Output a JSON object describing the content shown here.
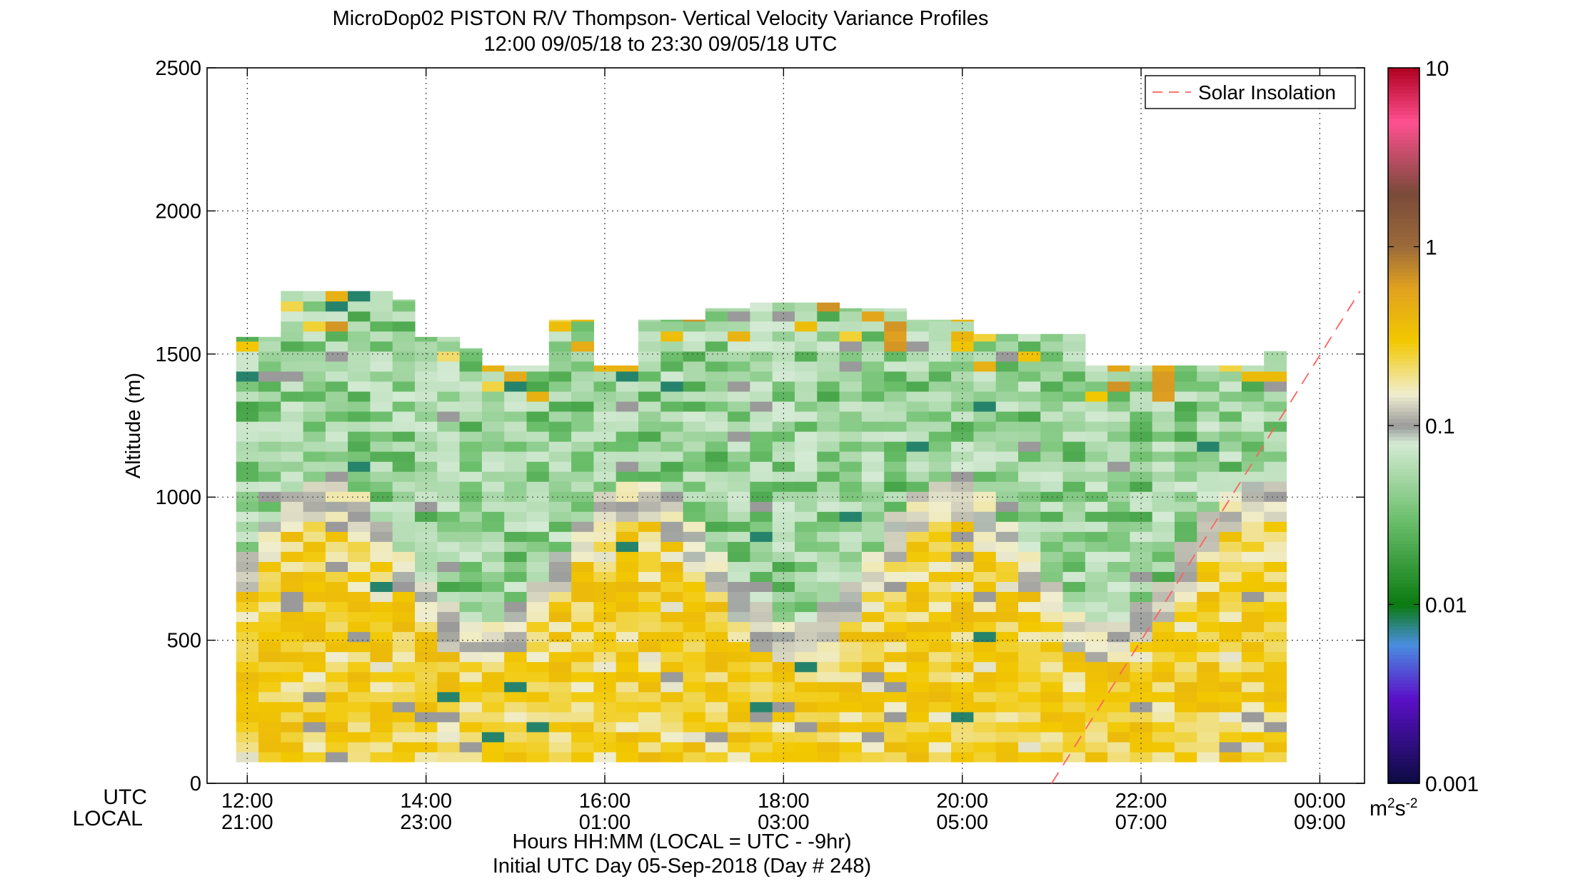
{
  "figure": {
    "title_line1": "MicroDop02 PISTON R/V Thompson- Vertical Velocity Variance Profiles",
    "title_line2": "12:00 09/05/18 to 23:30 09/05/18  UTC",
    "xlabel_line1": "Hours HH:MM  (LOCAL = UTC - -9hr)",
    "xlabel_line2": "Initial UTC Day 05-Sep-2018 (Day # 248)",
    "row_label_utc": "UTC",
    "row_label_local": "LOCAL",
    "colorbar_unit": "m²s⁻²",
    "colorbar_unit_base": "m",
    "colorbar_unit_exp1": "2",
    "colorbar_unit_mid": "s",
    "colorbar_unit_exp2": "-2"
  },
  "chart_data": {
    "type": "heatmap",
    "title": "MicroDop02 PISTON R/V Thompson- Vertical Velocity Variance Profiles",
    "subtitle": "12:00 09/05/18 to 23:30 09/05/18  UTC",
    "ylabel": "Altitude (m)",
    "xlabel": "Hours HH:MM  (LOCAL = UTC - -9hr)",
    "x_hours_range": [
      11.55,
      24.5
    ],
    "ylim": [
      0,
      2500
    ],
    "y_ticks": [
      0,
      500,
      1000,
      1500,
      2000,
      2500
    ],
    "x_tick_hours": [
      12,
      14,
      16,
      18,
      20,
      22,
      24
    ],
    "x_ticks_utc": [
      "12:00",
      "14:00",
      "16:00",
      "18:00",
      "20:00",
      "22:00",
      "00:00"
    ],
    "x_ticks_local": [
      "21:00",
      "23:00",
      "01:00",
      "03:00",
      "05:00",
      "07:00",
      "09:00"
    ],
    "grid": true,
    "colorbar": {
      "scale": "log",
      "range": [
        0.001,
        10
      ],
      "tick_values": [
        0.001,
        0.01,
        0.1,
        1,
        10
      ],
      "tick_labels": [
        "0.001",
        "0.01",
        "0.1",
        "1",
        "10"
      ],
      "colors": {
        "0.001": "#0b0b40",
        "0.003": "#5a10c8",
        "0.006": "#4a8ee0",
        "0.01": "#0a7a10",
        "0.03": "#6cbf6c",
        "0.08": "#d4ead4",
        "0.1": "#9a9a9a",
        "0.15": "#f0eed0",
        "0.3": "#f2c800",
        "0.6": "#e0a020",
        "1": "#9b6b3a",
        "2": "#7a4a3a",
        "5": "#ff5090",
        "10": "#b00020"
      }
    },
    "legend": {
      "position": "top-right",
      "entries": [
        {
          "name": "Solar Insolation",
          "style": "dashed",
          "color": "#ff6060"
        }
      ]
    },
    "series": [
      {
        "name": "Solar Insolation",
        "type": "line",
        "x_hours": [
          21.0,
          24.45
        ],
        "y": [
          0,
          1720
        ]
      }
    ],
    "time_bin_hours": 0.25,
    "altitude_bin_m": 35,
    "profiles": {
      "time_start_hour": 12.0,
      "time_end_hour": 23.5,
      "cloud_base_top_m": [
        [
          75,
          1560
        ],
        [
          75,
          1560
        ],
        [
          75,
          1720
        ],
        [
          75,
          1720
        ],
        [
          75,
          1720
        ],
        [
          75,
          1720
        ],
        [
          75,
          1720
        ],
        [
          75,
          1690
        ],
        [
          75,
          1560
        ],
        [
          75,
          1560
        ],
        [
          75,
          1520
        ],
        [
          75,
          1460
        ],
        [
          75,
          1460
        ],
        [
          75,
          1460
        ],
        [
          75,
          1620
        ],
        [
          75,
          1620
        ],
        [
          75,
          1460
        ],
        [
          75,
          1460
        ],
        [
          75,
          1620
        ],
        [
          75,
          1620
        ],
        [
          75,
          1620
        ],
        [
          75,
          1660
        ],
        [
          75,
          1660
        ],
        [
          75,
          1680
        ],
        [
          75,
          1680
        ],
        [
          75,
          1680
        ],
        [
          75,
          1680
        ],
        [
          75,
          1660
        ],
        [
          75,
          1660
        ],
        [
          75,
          1660
        ],
        [
          75,
          1620
        ],
        [
          75,
          1620
        ],
        [
          75,
          1620
        ],
        [
          75,
          1570
        ],
        [
          75,
          1570
        ],
        [
          75,
          1570
        ],
        [
          75,
          1570
        ],
        [
          75,
          1570
        ],
        [
          75,
          1460
        ],
        [
          75,
          1460
        ],
        [
          75,
          1460
        ],
        [
          75,
          1460
        ],
        [
          75,
          1460
        ],
        [
          75,
          1460
        ],
        [
          75,
          1460
        ],
        [
          75,
          1460
        ],
        [
          75,
          1510
        ]
      ],
      "note_low_layer": "variance 0.15–0.35 below ~800 m",
      "note_upper_layer": "variance 0.02–0.08 between ~800 and 1600 m"
    }
  }
}
